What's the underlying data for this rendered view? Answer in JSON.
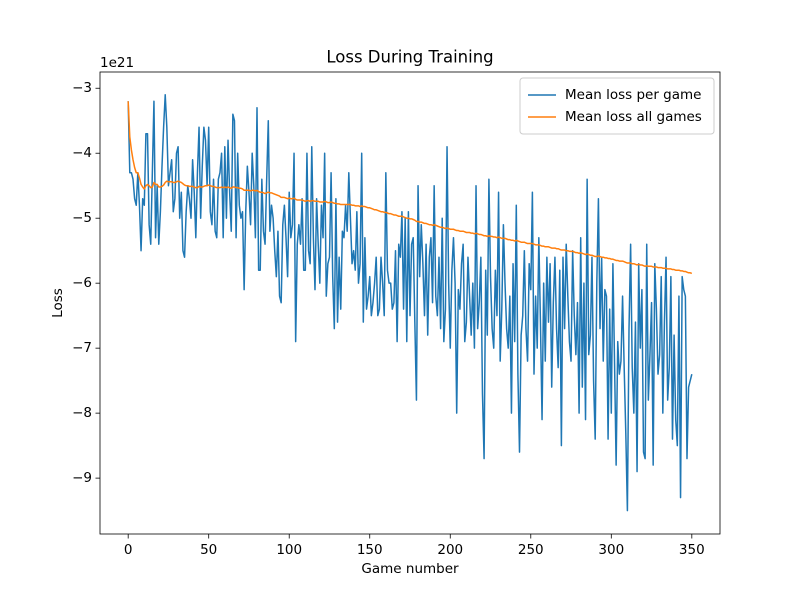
{
  "chart_data": {
    "type": "line",
    "title": "Loss During Training",
    "xlabel": "Game number",
    "ylabel": "Loss",
    "y_offset_label": "1e21",
    "xlim": [
      -17.5,
      367.5
    ],
    "ylim": [
      -9.86,
      -2.75
    ],
    "xticks": [
      0,
      50,
      100,
      150,
      200,
      250,
      300,
      350
    ],
    "yticks": [
      {
        "value": -9,
        "label": "−9"
      },
      {
        "value": -8,
        "label": "−8"
      },
      {
        "value": -7,
        "label": "−7"
      },
      {
        "value": -6,
        "label": "−6"
      },
      {
        "value": -5,
        "label": "−5"
      },
      {
        "value": -4,
        "label": "−4"
      },
      {
        "value": -3,
        "label": "−3"
      }
    ],
    "grid": false,
    "legend": "upper right",
    "x": [
      0,
      1,
      2,
      3,
      4,
      5,
      6,
      7,
      8,
      9,
      10,
      11,
      12,
      13,
      14,
      15,
      16,
      17,
      18,
      19,
      20,
      21,
      22,
      23,
      24,
      25,
      26,
      27,
      28,
      29,
      30,
      31,
      32,
      33,
      34,
      35,
      36,
      37,
      38,
      39,
      40,
      41,
      42,
      43,
      44,
      45,
      46,
      47,
      48,
      49,
      50,
      51,
      52,
      53,
      54,
      55,
      56,
      57,
      58,
      59,
      60,
      61,
      62,
      63,
      64,
      65,
      66,
      67,
      68,
      69,
      70,
      71,
      72,
      73,
      74,
      75,
      76,
      77,
      78,
      79,
      80,
      81,
      82,
      83,
      84,
      85,
      86,
      87,
      88,
      89,
      90,
      91,
      92,
      93,
      94,
      95,
      96,
      97,
      98,
      99,
      100,
      101,
      102,
      103,
      104,
      105,
      106,
      107,
      108,
      109,
      110,
      111,
      112,
      113,
      114,
      115,
      116,
      117,
      118,
      119,
      120,
      121,
      122,
      123,
      124,
      125,
      126,
      127,
      128,
      129,
      130,
      131,
      132,
      133,
      134,
      135,
      136,
      137,
      138,
      139,
      140,
      141,
      142,
      143,
      144,
      145,
      146,
      147,
      148,
      149,
      150,
      151,
      152,
      153,
      154,
      155,
      156,
      157,
      158,
      159,
      160,
      161,
      162,
      163,
      164,
      165,
      166,
      167,
      168,
      169,
      170,
      171,
      172,
      173,
      174,
      175,
      176,
      177,
      178,
      179,
      180,
      181,
      182,
      183,
      184,
      185,
      186,
      187,
      188,
      189,
      190,
      191,
      192,
      193,
      194,
      195,
      196,
      197,
      198,
      199,
      200,
      201,
      202,
      203,
      204,
      205,
      206,
      207,
      208,
      209,
      210,
      211,
      212,
      213,
      214,
      215,
      216,
      217,
      218,
      219,
      220,
      221,
      222,
      223,
      224,
      225,
      226,
      227,
      228,
      229,
      230,
      231,
      232,
      233,
      234,
      235,
      236,
      237,
      238,
      239,
      240,
      241,
      242,
      243,
      244,
      245,
      246,
      247,
      248,
      249,
      250,
      251,
      252,
      253,
      254,
      255,
      256,
      257,
      258,
      259,
      260,
      261,
      262,
      263,
      264,
      265,
      266,
      267,
      268,
      269,
      270,
      271,
      272,
      273,
      274,
      275,
      276,
      277,
      278,
      279,
      280,
      281,
      282,
      283,
      284,
      285,
      286,
      287,
      288,
      289,
      290,
      291,
      292,
      293,
      294,
      295,
      296,
      297,
      298,
      299,
      300,
      301,
      302,
      303,
      304,
      305,
      306,
      307,
      308,
      309,
      310,
      311,
      312,
      313,
      314,
      315,
      316,
      317,
      318,
      319,
      320,
      321,
      322,
      323,
      324,
      325,
      326,
      327,
      328,
      329,
      330,
      331,
      332,
      333,
      334,
      335,
      336,
      337,
      338,
      339,
      340,
      341,
      342,
      343,
      344,
      345,
      346,
      347,
      348,
      349,
      350
    ],
    "series": [
      {
        "name": "Mean loss per game",
        "color": "#1f77b4",
        "values": [
          -3.2,
          -4.3,
          -4.3,
          -4.4,
          -4.7,
          -4.8,
          -4.3,
          -4.8,
          -5.5,
          -4.7,
          -4.8,
          -3.7,
          -3.7,
          -5.1,
          -5.4,
          -4.3,
          -3.2,
          -5.3,
          -4.5,
          -5.4,
          -4.9,
          -4.2,
          -3.6,
          -3.1,
          -3.6,
          -4.5,
          -4.3,
          -4.1,
          -4.9,
          -4.7,
          -4.0,
          -3.9,
          -5.0,
          -4.6,
          -5.5,
          -5.6,
          -4.9,
          -4.5,
          -4.7,
          -5.0,
          -4.1,
          -4.6,
          -5.3,
          -4.3,
          -3.6,
          -5.0,
          -4.2,
          -3.6,
          -3.8,
          -4.5,
          -3.6,
          -4.9,
          -5.1,
          -4.4,
          -5.2,
          -5.3,
          -4.4,
          -4.3,
          -4.0,
          -5.3,
          -3.9,
          -5.0,
          -3.8,
          -4.6,
          -5.2,
          -3.4,
          -3.5,
          -5.3,
          -4.0,
          -4.8,
          -5.0,
          -4.9,
          -6.1,
          -4.9,
          -4.2,
          -4.6,
          -5.1,
          -4.0,
          -4.5,
          -5.3,
          -3.3,
          -5.8,
          -5.8,
          -4.4,
          -5.2,
          -5.4,
          -4.4,
          -3.5,
          -5.2,
          -4.8,
          -5.0,
          -5.5,
          -5.9,
          -5.2,
          -6.2,
          -6.3,
          -5.1,
          -4.8,
          -5.3,
          -5.9,
          -4.6,
          -5.3,
          -5.1,
          -4.0,
          -6.9,
          -5.4,
          -5.1,
          -5.4,
          -4.7,
          -5.8,
          -5.8,
          -4.0,
          -5.5,
          -5.7,
          -3.9,
          -5.3,
          -6.1,
          -4.7,
          -5.4,
          -6.0,
          -4.8,
          -5.3,
          -4.0,
          -6.2,
          -5.7,
          -5.6,
          -4.3,
          -5.9,
          -6.7,
          -4.7,
          -6.6,
          -5.6,
          -6.4,
          -5.2,
          -5.3,
          -4.8,
          -5.2,
          -4.3,
          -5.0,
          -5.7,
          -5.5,
          -5.8,
          -4.9,
          -6.0,
          -5.7,
          -4.0,
          -6.6,
          -5.3,
          -6.4,
          -6.2,
          -5.9,
          -6.5,
          -6.3,
          -6.0,
          -5.6,
          -6.5,
          -6.4,
          -5.6,
          -6.0,
          -6.5,
          -4.3,
          -5.8,
          -6.0,
          -6.0,
          -6.4,
          -6.3,
          -5.5,
          -6.9,
          -5.4,
          -5.6,
          -4.9,
          -6.4,
          -5.0,
          -6.9,
          -4.9,
          -6.5,
          -5.4,
          -5.3,
          -6.6,
          -7.8,
          -4.5,
          -5.9,
          -5.1,
          -5.7,
          -6.5,
          -5.4,
          -6.8,
          -5.6,
          -5.3,
          -6.3,
          -4.5,
          -6.2,
          -6.5,
          -5.6,
          -6.7,
          -5.0,
          -6.9,
          -6.4,
          -3.9,
          -6.0,
          -7.0,
          -5.8,
          -5.3,
          -6.0,
          -8.0,
          -6.1,
          -6.4,
          -5.7,
          -5.4,
          -6.9,
          -6.6,
          -5.6,
          -6.2,
          -6.8,
          -6.0,
          -7.0,
          -4.5,
          -6.7,
          -6.3,
          -5.6,
          -7.7,
          -8.7,
          -5.8,
          -6.8,
          -4.4,
          -5.9,
          -6.7,
          -7.0,
          -5.8,
          -6.5,
          -4.6,
          -7.2,
          -6.4,
          -5.1,
          -6.0,
          -6.7,
          -7.0,
          -6.2,
          -8.0,
          -5.7,
          -6.9,
          -4.8,
          -7.4,
          -8.6,
          -6.8,
          -6.5,
          -5.5,
          -6.7,
          -7.2,
          -5.7,
          -6.1,
          -4.6,
          -7.4,
          -6.2,
          -7.0,
          -5.3,
          -6.6,
          -8.1,
          -6.0,
          -7.2,
          -5.6,
          -6.6,
          -5.7,
          -7.6,
          -6.3,
          -5.6,
          -6.7,
          -7.3,
          -5.8,
          -8.5,
          -5.6,
          -6.7,
          -5.4,
          -6.2,
          -6.9,
          -7.2,
          -5.5,
          -6.5,
          -7.1,
          -6.3,
          -8.0,
          -5.3,
          -7.6,
          -6.0,
          -8.1,
          -4.4,
          -7.1,
          -6.8,
          -5.6,
          -7.5,
          -8.4,
          -6.0,
          -4.7,
          -6.7,
          -5.6,
          -7.2,
          -6.1,
          -6.2,
          -8.4,
          -6.4,
          -8.0,
          -5.7,
          -7.2,
          -8.8,
          -6.9,
          -7.4,
          -7.2,
          -6.2,
          -7.3,
          -8.3,
          -9.5,
          -6.7,
          -5.4,
          -7.3,
          -8.0,
          -6.6,
          -8.9,
          -5.7,
          -7.0,
          -6.1,
          -8.6,
          -8.7,
          -5.4,
          -7.8,
          -7.1,
          -6.3,
          -8.8,
          -5.7,
          -6.4,
          -7.4,
          -7.1,
          -5.9,
          -8.0,
          -6.6,
          -5.6,
          -7.8,
          -7.3,
          -5.9,
          -8.4,
          -6.8,
          -8.1,
          -8.5,
          -6.2,
          -9.3,
          -5.9,
          -6.1,
          -6.2,
          -8.7,
          -7.6,
          -7.5,
          -7.4
        ]
      },
      {
        "name": "Mean loss all games",
        "color": "#ff7f0e",
        "values": [
          -3.2,
          -3.75,
          -3.95,
          -4.1,
          -4.22,
          -4.3,
          -4.3,
          -4.38,
          -4.48,
          -4.52,
          -4.55,
          -4.5,
          -4.48,
          -4.5,
          -4.53,
          -4.52,
          -4.45,
          -4.48,
          -4.48,
          -4.52,
          -4.52,
          -4.51,
          -4.49,
          -4.45,
          -4.43,
          -4.44,
          -4.44,
          -4.44,
          -4.45,
          -4.45,
          -4.44,
          -4.43,
          -4.44,
          -4.45,
          -4.47,
          -4.49,
          -4.5,
          -4.5,
          -4.51,
          -4.51,
          -4.51,
          -4.52,
          -4.53,
          -4.53,
          -4.51,
          -4.52,
          -4.52,
          -4.51,
          -4.5,
          -4.5,
          -4.49,
          -4.5,
          -4.51,
          -4.51,
          -4.52,
          -4.53,
          -4.53,
          -4.53,
          -4.52,
          -4.53,
          -4.52,
          -4.53,
          -4.52,
          -4.53,
          -4.54,
          -4.52,
          -4.52,
          -4.53,
          -4.53,
          -4.54,
          -4.54,
          -4.55,
          -4.57,
          -4.57,
          -4.57,
          -4.57,
          -4.58,
          -4.57,
          -4.57,
          -4.58,
          -4.57,
          -4.59,
          -4.6,
          -4.6,
          -4.61,
          -4.62,
          -4.61,
          -4.6,
          -4.61,
          -4.61,
          -4.62,
          -4.63,
          -4.64,
          -4.65,
          -4.66,
          -4.68,
          -4.68,
          -4.68,
          -4.69,
          -4.7,
          -4.69,
          -4.7,
          -4.7,
          -4.69,
          -4.71,
          -4.72,
          -4.72,
          -4.72,
          -4.72,
          -4.73,
          -4.74,
          -4.73,
          -4.73,
          -4.74,
          -4.73,
          -4.73,
          -4.74,
          -4.74,
          -4.74,
          -4.75,
          -4.75,
          -4.75,
          -4.74,
          -4.75,
          -4.76,
          -4.76,
          -4.75,
          -4.76,
          -4.77,
          -4.77,
          -4.78,
          -4.78,
          -4.79,
          -4.79,
          -4.79,
          -4.79,
          -4.79,
          -4.79,
          -4.79,
          -4.8,
          -4.8,
          -4.81,
          -4.81,
          -4.81,
          -4.82,
          -4.81,
          -4.82,
          -4.82,
          -4.83,
          -4.84,
          -4.84,
          -4.85,
          -4.86,
          -4.87,
          -4.87,
          -4.88,
          -4.89,
          -4.9,
          -4.9,
          -4.91,
          -4.91,
          -4.92,
          -4.93,
          -4.93,
          -4.94,
          -4.95,
          -4.95,
          -4.96,
          -4.97,
          -4.97,
          -4.97,
          -4.98,
          -4.99,
          -5.0,
          -5.0,
          -5.01,
          -5.01,
          -5.02,
          -5.03,
          -5.05,
          -5.05,
          -5.06,
          -5.06,
          -5.07,
          -5.08,
          -5.08,
          -5.09,
          -5.1,
          -5.1,
          -5.11,
          -5.1,
          -5.11,
          -5.12,
          -5.13,
          -5.14,
          -5.14,
          -5.15,
          -5.16,
          -5.15,
          -5.16,
          -5.17,
          -5.17,
          -5.17,
          -5.18,
          -5.19,
          -5.19,
          -5.2,
          -5.2,
          -5.2,
          -5.21,
          -5.22,
          -5.22,
          -5.22,
          -5.23,
          -5.23,
          -5.24,
          -5.23,
          -5.24,
          -5.25,
          -5.25,
          -5.26,
          -5.27,
          -5.27,
          -5.28,
          -5.27,
          -5.28,
          -5.28,
          -5.29,
          -5.29,
          -5.3,
          -5.29,
          -5.3,
          -5.31,
          -5.31,
          -5.31,
          -5.32,
          -5.33,
          -5.33,
          -5.34,
          -5.34,
          -5.35,
          -5.34,
          -5.35,
          -5.36,
          -5.37,
          -5.37,
          -5.37,
          -5.38,
          -5.39,
          -5.39,
          -5.39,
          -5.39,
          -5.4,
          -5.41,
          -5.41,
          -5.41,
          -5.42,
          -5.43,
          -5.43,
          -5.44,
          -5.44,
          -5.44,
          -5.45,
          -5.46,
          -5.46,
          -5.46,
          -5.47,
          -5.47,
          -5.48,
          -5.49,
          -5.49,
          -5.49,
          -5.5,
          -5.5,
          -5.51,
          -5.51,
          -5.51,
          -5.52,
          -5.53,
          -5.53,
          -5.54,
          -5.53,
          -5.54,
          -5.55,
          -5.56,
          -5.55,
          -5.56,
          -5.57,
          -5.57,
          -5.58,
          -5.59,
          -5.59,
          -5.58,
          -5.59,
          -5.6,
          -5.6,
          -5.61,
          -5.61,
          -5.62,
          -5.62,
          -5.63,
          -5.63,
          -5.64,
          -5.65,
          -5.65,
          -5.66,
          -5.66,
          -5.66,
          -5.67,
          -5.68,
          -5.69,
          -5.69,
          -5.69,
          -5.7,
          -5.7,
          -5.71,
          -5.72,
          -5.71,
          -5.72,
          -5.72,
          -5.73,
          -5.74,
          -5.73,
          -5.74,
          -5.74,
          -5.74,
          -5.75,
          -5.75,
          -5.75,
          -5.76,
          -5.76,
          -5.76,
          -5.77,
          -5.77,
          -5.77,
          -5.78,
          -5.78,
          -5.78,
          -5.79,
          -5.79,
          -5.8,
          -5.8,
          -5.8,
          -5.81,
          -5.81,
          -5.82,
          -5.82,
          -5.83,
          -5.84,
          -5.84,
          -5.85
        ]
      }
    ]
  }
}
